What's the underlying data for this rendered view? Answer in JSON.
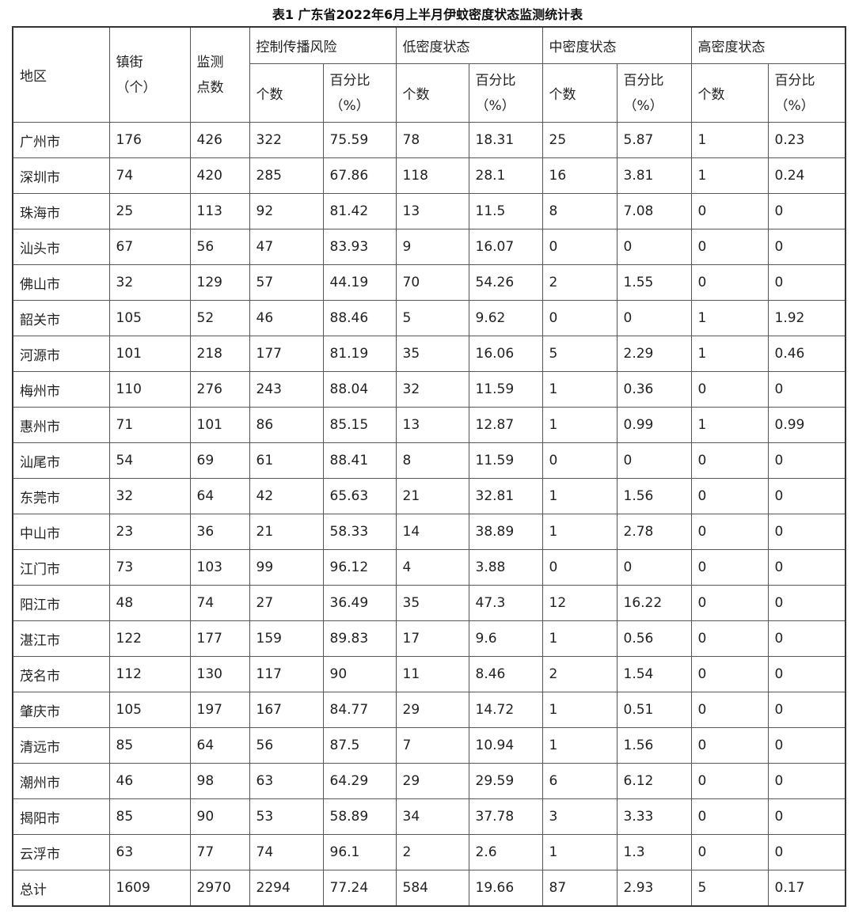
{
  "title": "表1 广东省2022年6月上半月伊蚊密度状态监测统计表",
  "header": {
    "region": "地区",
    "towns_line1": "镇街",
    "towns_line2": "（个）",
    "points_line1": "监测",
    "points_line2": "点数",
    "groups": [
      "控制传播风险",
      "低密度状态",
      "中密度状态",
      "高密度状态"
    ],
    "count": "个数",
    "pct_line1": "百分比",
    "pct_line2": "（%）"
  },
  "rows": [
    [
      "广州市",
      "176",
      "426",
      "322",
      "75.59",
      "78",
      "18.31",
      "25",
      "5.87",
      "1",
      "0.23"
    ],
    [
      "深圳市",
      "74",
      "420",
      "285",
      "67.86",
      "118",
      "28.1",
      "16",
      "3.81",
      "1",
      "0.24"
    ],
    [
      "珠海市",
      "25",
      "113",
      "92",
      "81.42",
      "13",
      "11.5",
      "8",
      "7.08",
      "0",
      "0"
    ],
    [
      "汕头市",
      "67",
      "56",
      "47",
      "83.93",
      "9",
      "16.07",
      "0",
      "0",
      "0",
      "0"
    ],
    [
      "佛山市",
      "32",
      "129",
      "57",
      "44.19",
      "70",
      "54.26",
      "2",
      "1.55",
      "0",
      "0"
    ],
    [
      "韶关市",
      "105",
      "52",
      "46",
      "88.46",
      "5",
      "9.62",
      "0",
      "0",
      "1",
      "1.92"
    ],
    [
      "河源市",
      "101",
      "218",
      "177",
      "81.19",
      "35",
      "16.06",
      "5",
      "2.29",
      "1",
      "0.46"
    ],
    [
      "梅州市",
      "110",
      "276",
      "243",
      "88.04",
      "32",
      "11.59",
      "1",
      "0.36",
      "0",
      "0"
    ],
    [
      "惠州市",
      "71",
      "101",
      "86",
      "85.15",
      "13",
      "12.87",
      "1",
      "0.99",
      "1",
      "0.99"
    ],
    [
      "汕尾市",
      "54",
      "69",
      "61",
      "88.41",
      "8",
      "11.59",
      "0",
      "0",
      "0",
      "0"
    ],
    [
      "东莞市",
      "32",
      "64",
      "42",
      "65.63",
      "21",
      "32.81",
      "1",
      "1.56",
      "0",
      "0"
    ],
    [
      "中山市",
      "23",
      "36",
      "21",
      "58.33",
      "14",
      "38.89",
      "1",
      "2.78",
      "0",
      "0"
    ],
    [
      "江门市",
      "73",
      "103",
      "99",
      "96.12",
      "4",
      "3.88",
      "0",
      "0",
      "0",
      "0"
    ],
    [
      "阳江市",
      "48",
      "74",
      "27",
      "36.49",
      "35",
      "47.3",
      "12",
      "16.22",
      "0",
      "0"
    ],
    [
      "湛江市",
      "122",
      "177",
      "159",
      "89.83",
      "17",
      "9.6",
      "1",
      "0.56",
      "0",
      "0"
    ],
    [
      "茂名市",
      "112",
      "130",
      "117",
      "90",
      "11",
      "8.46",
      "2",
      "1.54",
      "0",
      "0"
    ],
    [
      "肇庆市",
      "105",
      "197",
      "167",
      "84.77",
      "29",
      "14.72",
      "1",
      "0.51",
      "0",
      "0"
    ],
    [
      "清远市",
      "85",
      "64",
      "56",
      "87.5",
      "7",
      "10.94",
      "1",
      "1.56",
      "0",
      "0"
    ],
    [
      "潮州市",
      "46",
      "98",
      "63",
      "64.29",
      "29",
      "29.59",
      "6",
      "6.12",
      "0",
      "0"
    ],
    [
      "揭阳市",
      "85",
      "90",
      "53",
      "58.89",
      "34",
      "37.78",
      "3",
      "3.33",
      "0",
      "0"
    ],
    [
      "云浮市",
      "63",
      "77",
      "74",
      "96.1",
      "2",
      "2.6",
      "1",
      "1.3",
      "0",
      "0"
    ],
    [
      "总计",
      "1609",
      "2970",
      "2294",
      "77.24",
      "584",
      "19.66",
      "87",
      "2.93",
      "5",
      "0.17"
    ]
  ]
}
